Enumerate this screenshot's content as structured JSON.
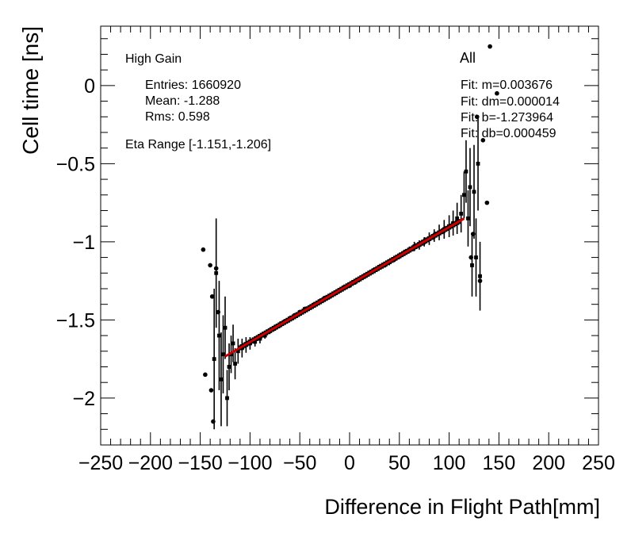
{
  "chart_data": {
    "type": "scatter",
    "xlabel": "Difference in Flight Path[mm]",
    "ylabel": "Cell time [ns]",
    "xlim": [
      -250,
      250
    ],
    "ylim": [
      -2.3,
      0.38
    ],
    "x_ticks": [
      -250,
      -200,
      -150,
      -100,
      -50,
      0,
      50,
      100,
      150,
      200,
      250
    ],
    "x_tick_labels": [
      "−250",
      "−200",
      "−150",
      "−100",
      "−50",
      "0",
      "50",
      "100",
      "150",
      "200",
      "250"
    ],
    "y_ticks": [
      0,
      -0.5,
      -1,
      -1.5,
      -2
    ],
    "y_tick_labels": [
      "0",
      "−0.5",
      "−1",
      "−1.5",
      "−2"
    ],
    "fit_line": {
      "x_start": -125,
      "x_end": 115,
      "m": 0.003676,
      "b": -1.273964,
      "color": "#cc0000"
    },
    "left_panel": {
      "gain": "High Gain",
      "entries": "Entries: 1660920",
      "mean": "Mean: -1.288",
      "rms": "Rms: 0.598",
      "eta_range": "Eta Range [-1.151,-1.206]"
    },
    "right_panel": {
      "category": "All",
      "fit_m": "Fit: m=0.003676",
      "fit_dm": "Fit: dm=0.000014",
      "fit_b": "Fit: b=-1.273964",
      "fit_db": "Fit: db=0.000459"
    },
    "outlier_points": [
      {
        "x": -147,
        "y": -1.05
      },
      {
        "x": -140,
        "y": -1.15
      },
      {
        "x": -138,
        "y": -1.35
      },
      {
        "x": -134,
        "y": -1.17
      },
      {
        "x": -145,
        "y": -1.85
      },
      {
        "x": -139,
        "y": -1.95
      },
      {
        "x": -137,
        "y": -2.15
      },
      {
        "x": -132,
        "y": -1.45
      },
      {
        "x": 141,
        "y": 0.25
      },
      {
        "x": 148,
        "y": -0.05
      },
      {
        "x": 134,
        "y": -0.35
      },
      {
        "x": 138,
        "y": -0.75
      },
      {
        "x": 128,
        "y": -0.2
      },
      {
        "x": 131,
        "y": -1.25
      },
      {
        "x": 124,
        "y": -0.95
      },
      {
        "x": 122,
        "y": -1.1
      }
    ],
    "error_bar_points": [
      {
        "x": -136,
        "y": -1.75,
        "err": 0.45
      },
      {
        "x": -134,
        "y": -1.2,
        "err": 0.35
      },
      {
        "x": -131,
        "y": -1.6,
        "err": 0.35
      },
      {
        "x": -129,
        "y": -1.88,
        "err": 0.3
      },
      {
        "x": -127,
        "y": -1.72,
        "err": 0.25
      },
      {
        "x": -125,
        "y": -1.55,
        "err": 0.2
      },
      {
        "x": -123,
        "y": -2.0,
        "err": 0.18
      },
      {
        "x": -121,
        "y": -1.8,
        "err": 0.15
      },
      {
        "x": -119,
        "y": -1.72,
        "err": 0.12
      },
      {
        "x": -117,
        "y": -1.65,
        "err": 0.12
      },
      {
        "x": -115,
        "y": -1.78,
        "err": 0.1
      },
      {
        "x": -112,
        "y": -1.7,
        "err": 0.08
      },
      {
        "x": -108,
        "y": -1.68,
        "err": 0.06
      },
      {
        "x": -104,
        "y": -1.66,
        "err": 0.05
      },
      {
        "x": -100,
        "y": -1.65,
        "err": 0.04
      },
      {
        "x": -95,
        "y": -1.64,
        "err": 0.03
      },
      {
        "x": -90,
        "y": -1.62,
        "err": 0.03
      },
      {
        "x": -85,
        "y": -1.6,
        "err": 0.02
      },
      {
        "x": -80,
        "y": -1.57,
        "err": 0.02
      },
      {
        "x": -75,
        "y": -1.55,
        "err": 0.02
      },
      {
        "x": -70,
        "y": -1.53,
        "err": 0.02
      },
      {
        "x": -65,
        "y": -1.51,
        "err": 0.015
      },
      {
        "x": -60,
        "y": -1.49,
        "err": 0.015
      },
      {
        "x": -55,
        "y": -1.47,
        "err": 0.015
      },
      {
        "x": -50,
        "y": -1.45,
        "err": 0.015
      },
      {
        "x": -45,
        "y": -1.43,
        "err": 0.015
      },
      {
        "x": -40,
        "y": -1.42,
        "err": 0.015
      },
      {
        "x": -35,
        "y": -1.4,
        "err": 0.015
      },
      {
        "x": -30,
        "y": -1.38,
        "err": 0.015
      },
      {
        "x": -25,
        "y": -1.36,
        "err": 0.015
      },
      {
        "x": -20,
        "y": -1.35,
        "err": 0.015
      },
      {
        "x": -15,
        "y": -1.33,
        "err": 0.015
      },
      {
        "x": -10,
        "y": -1.31,
        "err": 0.015
      },
      {
        "x": -5,
        "y": -1.29,
        "err": 0.015
      },
      {
        "x": 0,
        "y": -1.28,
        "err": 0.015
      },
      {
        "x": 5,
        "y": -1.26,
        "err": 0.015
      },
      {
        "x": 10,
        "y": -1.24,
        "err": 0.015
      },
      {
        "x": 15,
        "y": -1.22,
        "err": 0.015
      },
      {
        "x": 20,
        "y": -1.2,
        "err": 0.015
      },
      {
        "x": 25,
        "y": -1.18,
        "err": 0.015
      },
      {
        "x": 30,
        "y": -1.16,
        "err": 0.015
      },
      {
        "x": 35,
        "y": -1.15,
        "err": 0.015
      },
      {
        "x": 40,
        "y": -1.13,
        "err": 0.02
      },
      {
        "x": 45,
        "y": -1.11,
        "err": 0.02
      },
      {
        "x": 50,
        "y": -1.09,
        "err": 0.02
      },
      {
        "x": 55,
        "y": -1.07,
        "err": 0.02
      },
      {
        "x": 60,
        "y": -1.05,
        "err": 0.02
      },
      {
        "x": 65,
        "y": -1.03,
        "err": 0.03
      },
      {
        "x": 70,
        "y": -1.02,
        "err": 0.03
      },
      {
        "x": 75,
        "y": -1.0,
        "err": 0.03
      },
      {
        "x": 80,
        "y": -0.98,
        "err": 0.04
      },
      {
        "x": 85,
        "y": -0.96,
        "err": 0.04
      },
      {
        "x": 90,
        "y": -0.94,
        "err": 0.05
      },
      {
        "x": 95,
        "y": -0.92,
        "err": 0.06
      },
      {
        "x": 100,
        "y": -0.9,
        "err": 0.07
      },
      {
        "x": 104,
        "y": -0.88,
        "err": 0.08
      },
      {
        "x": 108,
        "y": -0.85,
        "err": 0.1
      },
      {
        "x": 112,
        "y": -0.82,
        "err": 0.12
      },
      {
        "x": 115,
        "y": -0.7,
        "err": 0.15
      },
      {
        "x": 117,
        "y": -0.55,
        "err": 0.2
      },
      {
        "x": 119,
        "y": -0.85,
        "err": 0.18
      },
      {
        "x": 121,
        "y": -0.65,
        "err": 0.25
      },
      {
        "x": 123,
        "y": -1.15,
        "err": 0.2
      },
      {
        "x": 125,
        "y": -0.68,
        "err": 0.3
      },
      {
        "x": 127,
        "y": -1.1,
        "err": 0.25
      },
      {
        "x": 129,
        "y": -0.5,
        "err": 0.3
      },
      {
        "x": 131,
        "y": -1.22,
        "err": 0.22
      }
    ]
  }
}
